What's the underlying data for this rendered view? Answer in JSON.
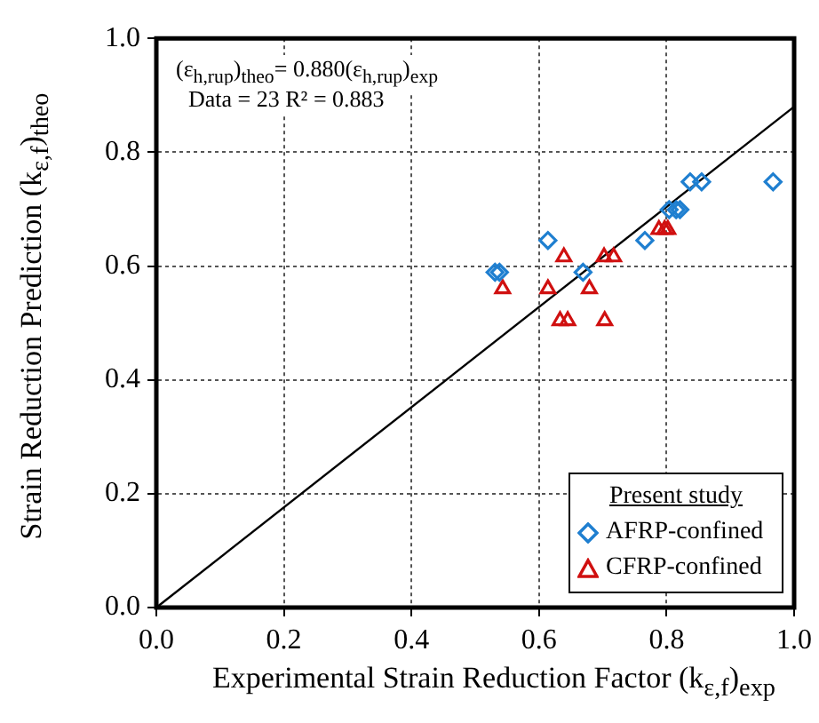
{
  "chart_data": {
    "type": "scatter",
    "xlabel": "Experimental Strain Reduction Factor (k$_{ε,f}$)$_{exp}$",
    "ylabel": "Strain Reduction Prediction (k$_{ε,f}$)$_{theo}$",
    "annotations": [
      "(ε$_{h,rup}$)$_{theo}$= 0.880(ε$_{h,rup}$)$_{exp}$",
      "Data = 23   R² = 0.883"
    ],
    "legend_title": "Present study",
    "legend": "bottom right",
    "grid": true,
    "xlim": [
      0,
      1
    ],
    "ylim": [
      0,
      1
    ],
    "xticks": [
      {
        "value": 0,
        "label": "0.0"
      },
      {
        "value": 0.2,
        "label": "0.2"
      },
      {
        "value": 0.4,
        "label": "0.4"
      },
      {
        "value": 0.6,
        "label": "0.6"
      },
      {
        "value": 0.8,
        "label": "0.8"
      },
      {
        "value": 1,
        "label": "1.0"
      }
    ],
    "yticks": [
      {
        "value": 0,
        "label": "0.0"
      },
      {
        "value": 0.2,
        "label": "0.2"
      },
      {
        "value": 0.4,
        "label": "0.4"
      },
      {
        "value": 0.6,
        "label": "0.6"
      },
      {
        "value": 0.8,
        "label": "0.8"
      },
      {
        "value": 1,
        "label": "1.0"
      }
    ],
    "series": [
      {
        "name": "AFRP-confined",
        "type": "scatter",
        "marker": "diamond",
        "color": "#1f7fd0",
        "x": [
          0.837,
          0.855,
          0.967,
          0.804,
          0.815,
          0.821,
          0.614,
          0.766,
          0.531,
          0.538,
          0.669
        ],
        "values": [
          0.748,
          0.748,
          0.748,
          0.699,
          0.699,
          0.699,
          0.645,
          0.645,
          0.589,
          0.589,
          0.589
        ]
      },
      {
        "name": "CFRP-confined",
        "type": "scatter",
        "marker": "triangle",
        "color": "#d01010",
        "x": [
          0.639,
          0.702,
          0.717,
          0.788,
          0.797,
          0.802,
          0.543,
          0.614,
          0.679,
          0.633,
          0.645,
          0.703
        ],
        "values": [
          0.616,
          0.616,
          0.616,
          0.664,
          0.664,
          0.664,
          0.56,
          0.56,
          0.56,
          0.504,
          0.504,
          0.504
        ]
      },
      {
        "type": "line",
        "marker": "none",
        "color": "#000000",
        "x": [
          0,
          1
        ],
        "values": [
          0,
          0.88
        ]
      }
    ]
  }
}
